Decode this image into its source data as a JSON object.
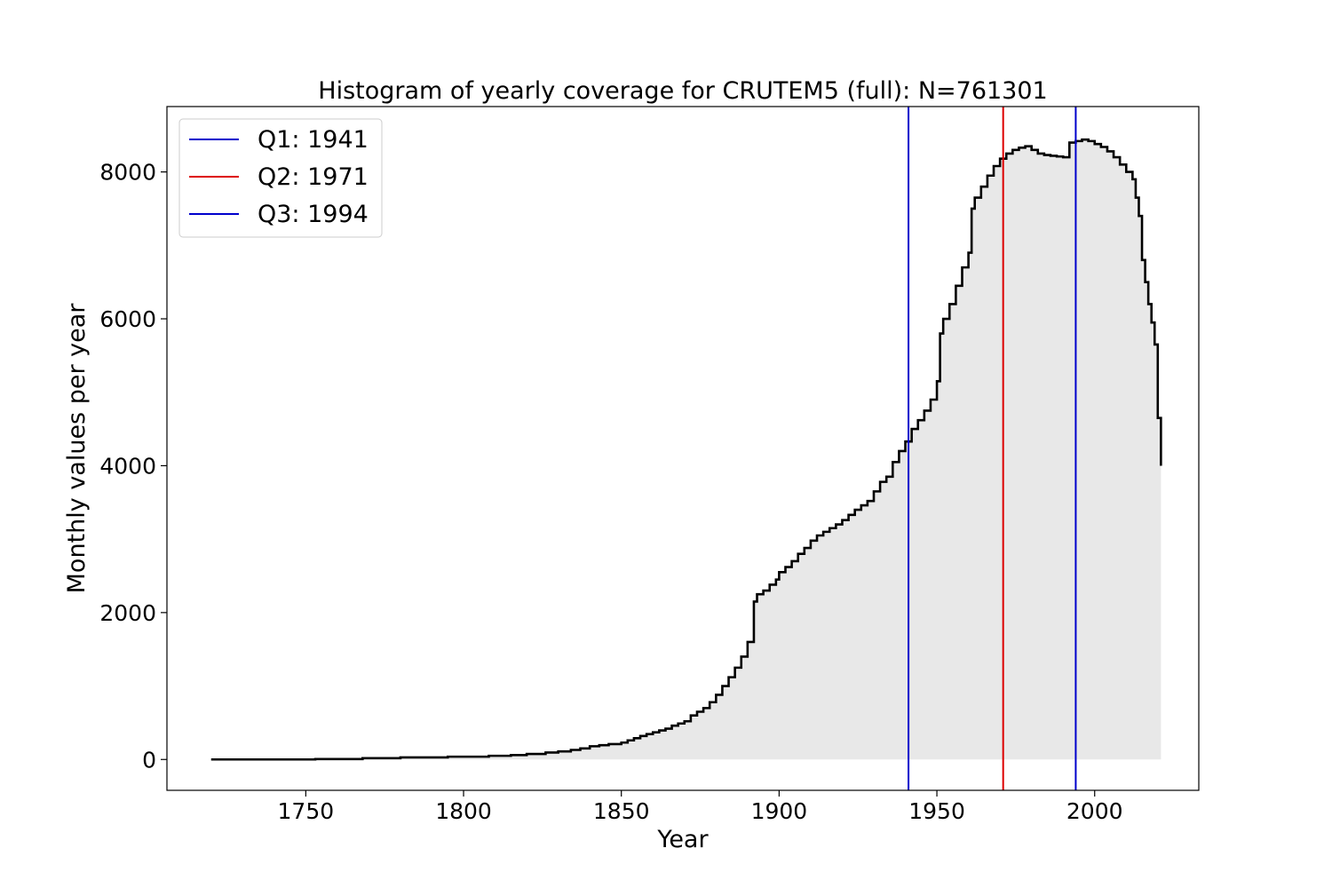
{
  "chart_data": {
    "type": "area",
    "title": "Histogram of yearly coverage for CRUTEM5 (full): N=761301",
    "xlabel": "Year",
    "ylabel": "Monthly values per year",
    "xlim": [
      1706,
      2033
    ],
    "ylim": [
      -420,
      8890
    ],
    "xticks": [
      1750,
      1800,
      1850,
      1900,
      1950,
      2000
    ],
    "yticks": [
      0,
      2000,
      4000,
      6000,
      8000
    ],
    "grid": false,
    "legend_position": "top-left",
    "colors": {
      "fill": "#e8e8e8",
      "step_line": "#000000",
      "q1": "#0000cc",
      "q2": "#dd0000",
      "q3": "#0000cc"
    },
    "quartiles": [
      {
        "label": "Q1: 1941",
        "year": 1941,
        "color": "#0000cc"
      },
      {
        "label": "Q2: 1971",
        "year": 1971,
        "color": "#dd0000"
      },
      {
        "label": "Q3: 1994",
        "year": 1994,
        "color": "#0000cc"
      }
    ],
    "series": [
      {
        "points": [
          [
            1720,
            0
          ],
          [
            1753,
            6
          ],
          [
            1768,
            18
          ],
          [
            1780,
            28
          ],
          [
            1795,
            38
          ],
          [
            1808,
            50
          ],
          [
            1815,
            60
          ],
          [
            1820,
            75
          ],
          [
            1826,
            95
          ],
          [
            1830,
            110
          ],
          [
            1834,
            130
          ],
          [
            1837,
            150
          ],
          [
            1840,
            180
          ],
          [
            1843,
            195
          ],
          [
            1846,
            210
          ],
          [
            1850,
            230
          ],
          [
            1852,
            260
          ],
          [
            1854,
            290
          ],
          [
            1856,
            320
          ],
          [
            1858,
            345
          ],
          [
            1860,
            370
          ],
          [
            1862,
            395
          ],
          [
            1864,
            420
          ],
          [
            1866,
            460
          ],
          [
            1868,
            490
          ],
          [
            1870,
            520
          ],
          [
            1872,
            600
          ],
          [
            1874,
            650
          ],
          [
            1876,
            700
          ],
          [
            1878,
            780
          ],
          [
            1880,
            880
          ],
          [
            1882,
            1000
          ],
          [
            1884,
            1120
          ],
          [
            1886,
            1250
          ],
          [
            1888,
            1400
          ],
          [
            1890,
            1600
          ],
          [
            1892,
            2150
          ],
          [
            1893,
            2250
          ],
          [
            1895,
            2300
          ],
          [
            1897,
            2380
          ],
          [
            1899,
            2450
          ],
          [
            1900,
            2550
          ],
          [
            1902,
            2620
          ],
          [
            1904,
            2700
          ],
          [
            1906,
            2800
          ],
          [
            1908,
            2880
          ],
          [
            1910,
            2980
          ],
          [
            1912,
            3050
          ],
          [
            1914,
            3100
          ],
          [
            1916,
            3150
          ],
          [
            1918,
            3200
          ],
          [
            1920,
            3260
          ],
          [
            1922,
            3330
          ],
          [
            1924,
            3400
          ],
          [
            1926,
            3460
          ],
          [
            1928,
            3520
          ],
          [
            1930,
            3650
          ],
          [
            1932,
            3780
          ],
          [
            1934,
            3850
          ],
          [
            1936,
            4050
          ],
          [
            1938,
            4200
          ],
          [
            1940,
            4330
          ],
          [
            1942,
            4500
          ],
          [
            1944,
            4620
          ],
          [
            1946,
            4750
          ],
          [
            1948,
            4900
          ],
          [
            1950,
            5150
          ],
          [
            1951,
            5800
          ],
          [
            1952,
            6000
          ],
          [
            1954,
            6200
          ],
          [
            1956,
            6450
          ],
          [
            1958,
            6700
          ],
          [
            1960,
            6900
          ],
          [
            1961,
            7500
          ],
          [
            1962,
            7650
          ],
          [
            1964,
            7800
          ],
          [
            1966,
            7950
          ],
          [
            1968,
            8080
          ],
          [
            1970,
            8180
          ],
          [
            1972,
            8250
          ],
          [
            1974,
            8300
          ],
          [
            1976,
            8330
          ],
          [
            1978,
            8350
          ],
          [
            1980,
            8300
          ],
          [
            1982,
            8250
          ],
          [
            1984,
            8230
          ],
          [
            1986,
            8220
          ],
          [
            1988,
            8210
          ],
          [
            1990,
            8200
          ],
          [
            1992,
            8400
          ],
          [
            1994,
            8420
          ],
          [
            1996,
            8440
          ],
          [
            1998,
            8420
          ],
          [
            2000,
            8380
          ],
          [
            2002,
            8340
          ],
          [
            2004,
            8280
          ],
          [
            2006,
            8200
          ],
          [
            2008,
            8100
          ],
          [
            2010,
            8000
          ],
          [
            2012,
            7900
          ],
          [
            2013,
            7650
          ],
          [
            2014,
            7400
          ],
          [
            2015,
            6800
          ],
          [
            2016,
            6500
          ],
          [
            2017,
            6200
          ],
          [
            2018,
            5950
          ],
          [
            2019,
            5650
          ],
          [
            2020,
            4650
          ],
          [
            2021,
            4000
          ]
        ]
      }
    ]
  }
}
